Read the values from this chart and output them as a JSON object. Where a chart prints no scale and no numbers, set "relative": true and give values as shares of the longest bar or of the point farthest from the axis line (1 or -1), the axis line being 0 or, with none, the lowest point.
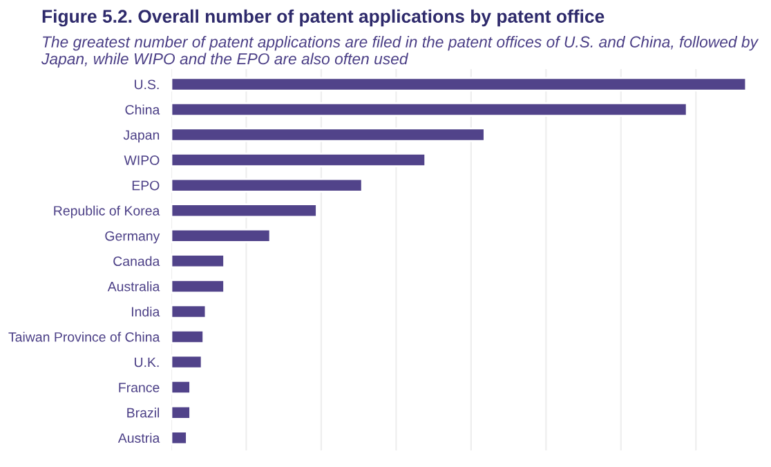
{
  "chart_data": {
    "type": "bar",
    "orientation": "horizontal",
    "relative": true,
    "grid": "x",
    "legend": false,
    "title": "Figure 5.2. Overall number of patent applications by patent office",
    "subtitle": "The greatest number of patent applications are filed in the patent offices of U.S. and China, followed by Japan, while WIPO and the EPO are also often used",
    "categories": [
      "U.S.",
      "China",
      "Japan",
      "WIPO",
      "EPO",
      "Republic of Korea",
      "Germany",
      "Canada",
      "Australia",
      "India",
      "Taiwan Province of China",
      "U.K.",
      "France",
      "Brazil",
      "Austria"
    ],
    "series": [
      {
        "color": "#51438a",
        "values": [
          1,
          0.897,
          0.545,
          0.442,
          0.332,
          0.253,
          0.172,
          0.092,
          0.092,
          0.06,
          0.056,
          0.053,
          0.033,
          0.033,
          0.027
        ]
      }
    ]
  }
}
